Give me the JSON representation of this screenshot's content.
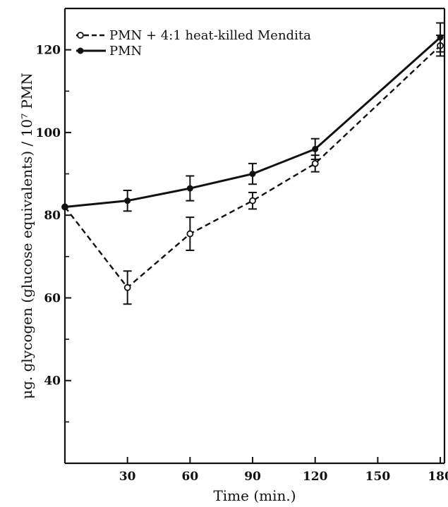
{
  "chart_data": {
    "type": "line",
    "xlabel": "Time (min.)",
    "ylabel": "μg. glycogen (glucose equivalents) / 10⁷ PMN",
    "xlim": [
      0,
      182
    ],
    "ylim": [
      20,
      130
    ],
    "x_ticks": [
      30,
      60,
      90,
      120,
      150,
      180
    ],
    "x_tick_labels": [
      "30",
      "60",
      "90",
      "120",
      "150",
      "180"
    ],
    "y_ticks": [
      40,
      60,
      80,
      100,
      120
    ],
    "y_tick_labels": [
      "40",
      "60",
      "80",
      "100",
      "120"
    ],
    "y_minor_ticks": [
      30,
      50,
      70,
      90,
      110
    ],
    "grid": false,
    "legend_position": "top-left",
    "series": [
      {
        "name": "PMN + 4:1 heat-killed Mendita",
        "style": "dashed",
        "marker": "open-circle",
        "color": "#111111",
        "x": [
          0,
          30,
          60,
          90,
          120,
          180
        ],
        "y": [
          82,
          62.5,
          75.5,
          83.5,
          92.5,
          121
        ],
        "error": [
          0,
          4,
          4,
          2,
          2,
          2.5
        ]
      },
      {
        "name": "PMN",
        "style": "solid",
        "marker": "filled-circle",
        "color": "#111111",
        "x": [
          0,
          30,
          60,
          90,
          120,
          180
        ],
        "y": [
          82,
          83.5,
          86.5,
          90,
          96,
          123
        ],
        "error": [
          0,
          2.5,
          3,
          2.5,
          2.5,
          3.5
        ]
      }
    ]
  }
}
